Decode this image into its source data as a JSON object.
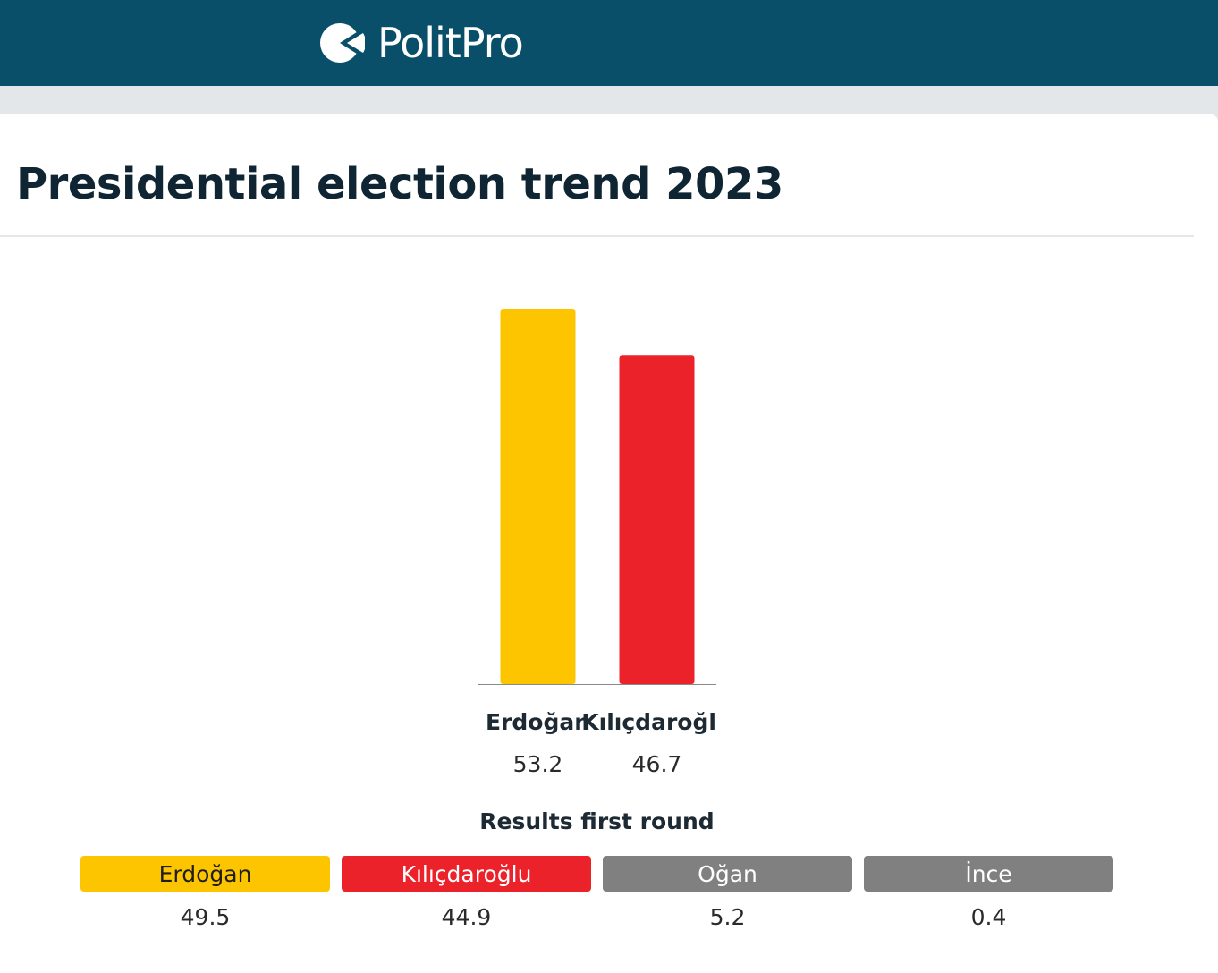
{
  "header": {
    "brand": "PolitPro",
    "logo_icon": "politpro-logo-icon"
  },
  "page": {
    "title": "Presidential election trend 2023"
  },
  "chart_data": {
    "type": "bar",
    "categories": [
      "Erdoğan",
      "Kılıçdaroğlu"
    ],
    "values": [
      53.2,
      46.7
    ],
    "value_labels": [
      "53.2",
      "46.7"
    ],
    "colors": [
      "#fdc500",
      "#ec222a"
    ],
    "ylim": [
      0,
      53.2
    ],
    "grid": false
  },
  "results": {
    "title": "Results first round",
    "items": [
      {
        "name": "Erdoğan",
        "value": "49.5",
        "color": "#fdc500",
        "text_color": "#1e1e1e"
      },
      {
        "name": "Kılıçdaroğlu",
        "value": "44.9",
        "color": "#ec222a",
        "text_color": "#ffffff"
      },
      {
        "name": "Oğan",
        "value": "5.2",
        "color": "#808080",
        "text_color": "#ffffff"
      },
      {
        "name": "İnce",
        "value": "0.4",
        "color": "#808080",
        "text_color": "#ffffff"
      }
    ]
  }
}
